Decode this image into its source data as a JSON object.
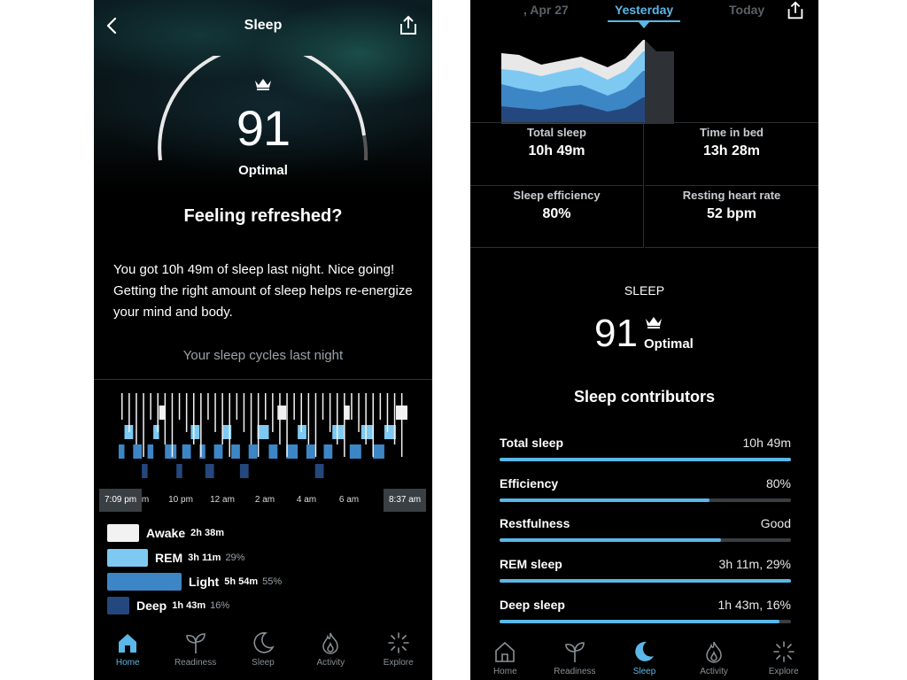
{
  "left": {
    "header": {
      "title": "Sleep"
    },
    "score": {
      "value": "91",
      "label": "Optimal"
    },
    "headline": "Feeling refreshed?",
    "body": "You got 10h 49m of sleep last night. Nice going! Getting the right amount of sleep helps re-energize your mind and body.",
    "cycles_title": "Your sleep cycles last night",
    "time_axis": {
      "start": "7:09 pm",
      "end": "8:37 am",
      "ticks": [
        "m",
        "10 pm",
        "12 am",
        "2 am",
        "4 am",
        "6 am"
      ]
    },
    "legend": [
      {
        "name": "Awake",
        "duration": "2h 38m",
        "percent": "",
        "color": "#f2f2f2"
      },
      {
        "name": "REM",
        "duration": "3h 11m",
        "percent": "29%",
        "color": "#7ec9f2"
      },
      {
        "name": "Light",
        "duration": "5h 54m",
        "percent": "55%",
        "color": "#3d86c6"
      },
      {
        "name": "Deep",
        "duration": "1h 43m",
        "percent": "16%",
        "color": "#24487d"
      }
    ],
    "tabs": [
      {
        "label": "Home",
        "icon": "home-icon",
        "active": true
      },
      {
        "label": "Readiness",
        "icon": "sprout-icon",
        "active": false
      },
      {
        "label": "Sleep",
        "icon": "moon-icon",
        "active": false
      },
      {
        "label": "Activity",
        "icon": "flame-icon",
        "active": false
      },
      {
        "label": "Explore",
        "icon": "sparkle-icon",
        "active": false
      }
    ]
  },
  "right": {
    "date_nav": {
      "prev": ", Apr 27",
      "current": "Yesterday",
      "next": "Today"
    },
    "stats": {
      "total_sleep": {
        "label": "Total sleep",
        "value": "10h 49m"
      },
      "time_in_bed": {
        "label": "Time in bed",
        "value": "13h 28m"
      },
      "efficiency": {
        "label": "Sleep efficiency",
        "value": "80%"
      },
      "rhr": {
        "label": "Resting heart rate",
        "value": "52 bpm"
      }
    },
    "sleep_label": "SLEEP",
    "score": {
      "value": "91",
      "label": "Optimal"
    },
    "contributors_title": "Sleep contributors",
    "contributors": [
      {
        "name": "Total sleep",
        "value": "10h 49m",
        "level": 1.0
      },
      {
        "name": "Efficiency",
        "value": "80%",
        "level": 0.72
      },
      {
        "name": "Restfulness",
        "value": "Good",
        "level": 0.76
      },
      {
        "name": "REM sleep",
        "value": "3h 11m, 29%",
        "level": 1.0
      },
      {
        "name": "Deep sleep",
        "value": "1h 43m, 16%",
        "level": 0.96
      }
    ],
    "tabs": [
      {
        "label": "Home",
        "icon": "home-icon",
        "active": false
      },
      {
        "label": "Readiness",
        "icon": "sprout-icon",
        "active": false
      },
      {
        "label": "Sleep",
        "icon": "moon-icon",
        "active": true
      },
      {
        "label": "Activity",
        "icon": "flame-icon",
        "active": false
      },
      {
        "label": "Explore",
        "icon": "sparkle-icon",
        "active": false
      }
    ]
  },
  "colors": {
    "accent": "#5ab7e8",
    "background": "#000000"
  }
}
